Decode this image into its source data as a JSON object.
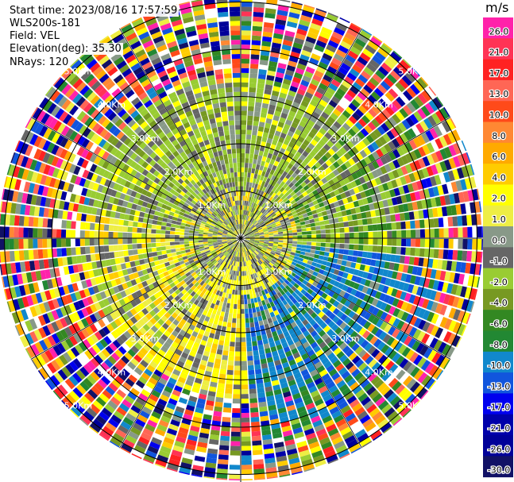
{
  "header": {
    "start_time": "Start time: 2023/08/16 17:57:59",
    "station": "WLS200s-181",
    "field": "Field: VEL",
    "elevation": "Elevation(deg): 35.30",
    "nrays": "NRays: 120"
  },
  "chart_data": {
    "type": "heatmap",
    "projection": "polar",
    "field": "VEL",
    "n_rays": 120,
    "elevation_deg": 35.3,
    "range_rings_km": [
      1.0,
      2.0,
      3.0,
      4.0,
      5.0
    ],
    "ring_labels": [
      "1.0Km",
      "2.0Km",
      "3.0Km",
      "4.0Km",
      "5.0Km"
    ],
    "label_angles_deg": [
      -45,
      45,
      135,
      -135
    ],
    "grid": true,
    "colorbar": {
      "unit": "m/s",
      "position": "right",
      "ticks": [
        "26.0",
        "21.0",
        "17.0",
        "13.0",
        "10.0",
        "8.0",
        "6.0",
        "4.0",
        "2.0",
        "1.0",
        "0.0",
        "-1.0",
        "-2.0",
        "-4.0",
        "-6.0",
        "-8.0",
        "-10.0",
        "-13.0",
        "-17.0",
        "-21.0",
        "-26.0",
        "-30.0"
      ],
      "colors": [
        "#ff22aa",
        "#ff3355",
        "#ff2222",
        "#ff6655",
        "#ff4a1a",
        "#ff8833",
        "#ffaa00",
        "#ffcc00",
        "#ffff00",
        "#eeee44",
        "#889988",
        "#666666",
        "#99cc33",
        "#779922",
        "#338822",
        "#228833",
        "#1188cc",
        "#1155dd",
        "#0000ee",
        "#0000aa",
        "#000099",
        "#111166"
      ]
    },
    "regions": [
      {
        "range_km": [
          0.0,
          1.2
        ],
        "sectors": "all",
        "dominant": "mixed near-zero (gray/green/yellow)"
      },
      {
        "range_km": [
          1.2,
          2.0
        ],
        "sectors": "south",
        "dominant": "2.0 (yellow)"
      },
      {
        "range_km": [
          1.2,
          2.0
        ],
        "sectors": "north",
        "dominant": "-2.0 (yellowgreen)"
      },
      {
        "range_km": [
          1.6,
          3.4
        ],
        "sectors": "east-southeast",
        "dominant": "-8.0 to -13.0 (blue)"
      },
      {
        "range_km": [
          1.6,
          3.0
        ],
        "sectors": "northeast",
        "dominant": "-4.0 to -6.0 (green)"
      },
      {
        "range_km": [
          3.0,
          5.0
        ],
        "sectors": "all",
        "dominant": "noise (random)"
      }
    ]
  }
}
